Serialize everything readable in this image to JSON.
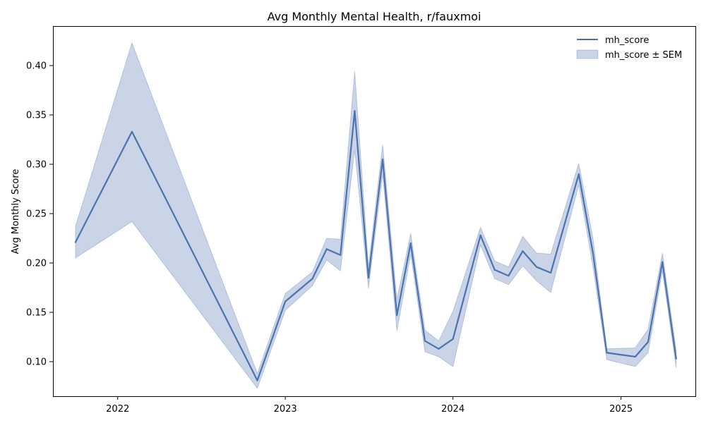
{
  "chart_data": {
    "type": "line",
    "title": "Avg Monthly Mental Health, r/fauxmoi",
    "xlabel": "",
    "ylabel": "Avg Monthly Score",
    "x_ticks": [
      "2022",
      "2023",
      "2024",
      "2025"
    ],
    "y_ticks": [
      "0.10",
      "0.15",
      "0.20",
      "0.25",
      "0.30",
      "0.35",
      "0.40"
    ],
    "xlim": [
      "2021-08-13",
      "2025-06-12"
    ],
    "ylim": [
      0.065,
      0.44
    ],
    "grid": false,
    "legend_position": "top-right",
    "colors": {
      "line": "#4c72b0",
      "band": "#4c72b0"
    },
    "series": [
      {
        "name": "mh_score",
        "x": [
          "2021-10-01",
          "2022-02-01",
          "2022-11-01",
          "2023-01-01",
          "2023-03-01",
          "2023-04-01",
          "2023-05-01",
          "2023-06-01",
          "2023-07-01",
          "2023-08-01",
          "2023-09-01",
          "2023-10-01",
          "2023-11-01",
          "2023-12-01",
          "2024-01-01",
          "2024-03-01",
          "2024-04-01",
          "2024-05-01",
          "2024-06-01",
          "2024-07-01",
          "2024-08-01",
          "2024-10-01",
          "2024-11-01",
          "2024-12-01",
          "2025-02-01",
          "2025-03-01",
          "2025-04-01",
          "2025-05-01"
        ],
        "values": [
          0.221,
          0.333,
          0.081,
          0.161,
          0.184,
          0.214,
          0.208,
          0.354,
          0.185,
          0.305,
          0.147,
          0.22,
          0.121,
          0.113,
          0.123,
          0.228,
          0.193,
          0.187,
          0.212,
          0.196,
          0.19,
          0.29,
          0.21,
          0.109,
          0.105,
          0.12,
          0.201,
          0.103
        ],
        "lower": [
          0.205,
          0.242,
          0.073,
          0.152,
          0.177,
          0.203,
          0.192,
          0.315,
          0.174,
          0.29,
          0.131,
          0.209,
          0.11,
          0.105,
          0.095,
          0.218,
          0.184,
          0.178,
          0.197,
          0.182,
          0.17,
          0.279,
          0.196,
          0.102,
          0.095,
          0.109,
          0.192,
          0.094
        ],
        "upper": [
          0.237,
          0.423,
          0.088,
          0.169,
          0.191,
          0.225,
          0.224,
          0.394,
          0.196,
          0.32,
          0.163,
          0.23,
          0.132,
          0.121,
          0.151,
          0.236,
          0.202,
          0.196,
          0.227,
          0.21,
          0.209,
          0.301,
          0.225,
          0.113,
          0.114,
          0.133,
          0.21,
          0.112
        ]
      }
    ],
    "legend": [
      "mh_score",
      "mh_score ± SEM"
    ]
  }
}
